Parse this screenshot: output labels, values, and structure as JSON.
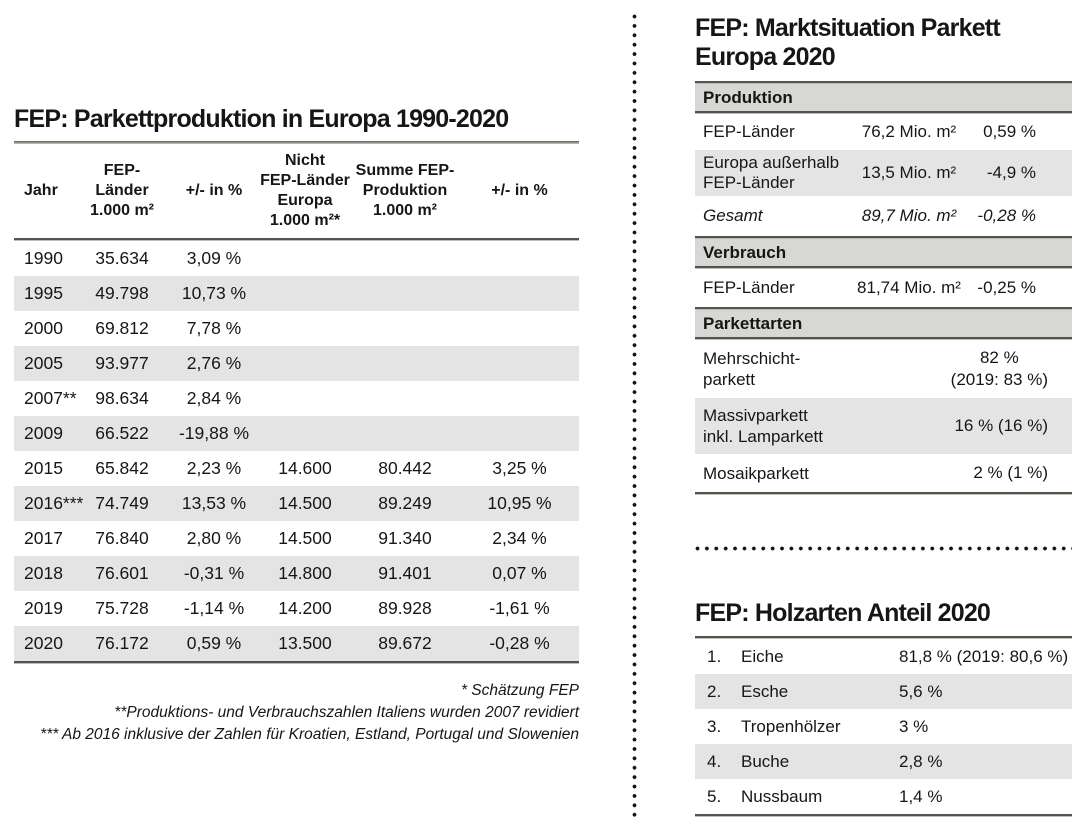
{
  "production_table": {
    "title": "FEP: Parkettproduktion in Europa 1990-2020",
    "columns": [
      "Jahr",
      "FEP-\nLänder\n1.000 m²",
      "+/- in %",
      "Nicht\nFEP-Länder\nEuropa\n1.000 m²*",
      "Summe FEP-\nProduktion\n1.000 m²",
      "+/- in %"
    ],
    "rows": [
      [
        "1990",
        "35.634",
        "3,09 %",
        "",
        "",
        ""
      ],
      [
        "1995",
        "49.798",
        "10,73 %",
        "",
        "",
        ""
      ],
      [
        "2000",
        "69.812",
        "7,78 %",
        "",
        "",
        ""
      ],
      [
        "2005",
        "93.977",
        "2,76 %",
        "",
        "",
        ""
      ],
      [
        "2007**",
        "98.634",
        "2,84 %",
        "",
        "",
        ""
      ],
      [
        "2009",
        "66.522",
        "-19,88 %",
        "",
        "",
        ""
      ],
      [
        "2015",
        "65.842",
        "2,23 %",
        "14.600",
        "80.442",
        "3,25 %"
      ],
      [
        "2016***",
        "74.749",
        "13,53 %",
        "14.500",
        "89.249",
        "10,95 %"
      ],
      [
        "2017",
        "76.840",
        "2,80 %",
        "14.500",
        "91.340",
        "2,34 %"
      ],
      [
        "2018",
        "76.601",
        "-0,31 %",
        "14.800",
        "91.401",
        "0,07 %"
      ],
      [
        "2019",
        "75.728",
        "-1,14 %",
        "14.200",
        "89.928",
        "-1,61 %"
      ],
      [
        "2020",
        "76.172",
        "0,59 %",
        "13.500",
        "89.672",
        "-0,28 %"
      ]
    ],
    "footnotes": [
      "* Schätzung FEP",
      "**Produktions- und Verbrauchszahlen Italiens wurden 2007 revidiert",
      "*** Ab 2016 inklusive der Zahlen für Kroatien, Estland, Portugal und Slowenien"
    ]
  },
  "market_table": {
    "title": "FEP: Marktsituation Parkett\nEuropa 2020",
    "sections": [
      {
        "header": "Produktion",
        "rows": [
          {
            "label": "FEP-Länder",
            "value": "76,2 Mio. m²",
            "pct": "0,59 %"
          },
          {
            "label": "Europa außerhalb\nFEP-Länder",
            "value": "13,5 Mio. m²",
            "pct": "-4,9 %"
          },
          {
            "label": "Gesamt",
            "value": "89,7 Mio. m²",
            "pct": "-0,28 %"
          }
        ]
      },
      {
        "header": "Verbrauch",
        "rows": [
          {
            "label": "FEP-Länder",
            "value": "81,74 Mio. m²",
            "pct": "-0,25 %"
          }
        ]
      },
      {
        "header": "Parkettarten",
        "rows": [
          {
            "label": "Mehrschicht-\nparkett",
            "value": "82 %\n(2019: 83 %)"
          },
          {
            "label": "Massivparkett\ninkl. Lamparkett",
            "value": "16 % (16 %)"
          },
          {
            "label": "Mosaikparkett",
            "value": "2 % (1 %)"
          }
        ]
      }
    ]
  },
  "wood_table": {
    "title": "FEP: Holzarten Anteil 2020",
    "rows": [
      {
        "rank": "1.",
        "name": "Eiche",
        "share": "81,8 % (2019: 80,6 %)"
      },
      {
        "rank": "2.",
        "name": "Esche",
        "share": "5,6 %"
      },
      {
        "rank": "3.",
        "name": "Tropenhölzer",
        "share": "3 %"
      },
      {
        "rank": "4.",
        "name": "Buche",
        "share": "2,8 %"
      },
      {
        "rank": "5.",
        "name": "Nussbaum",
        "share": "1,4 %"
      }
    ]
  },
  "colors": {
    "stripe": "#e4e4e4",
    "section_bar": "#d7d7d5",
    "rule_dark": "#54544d",
    "rule_light": "#bdbdb6",
    "text": "#161614"
  }
}
